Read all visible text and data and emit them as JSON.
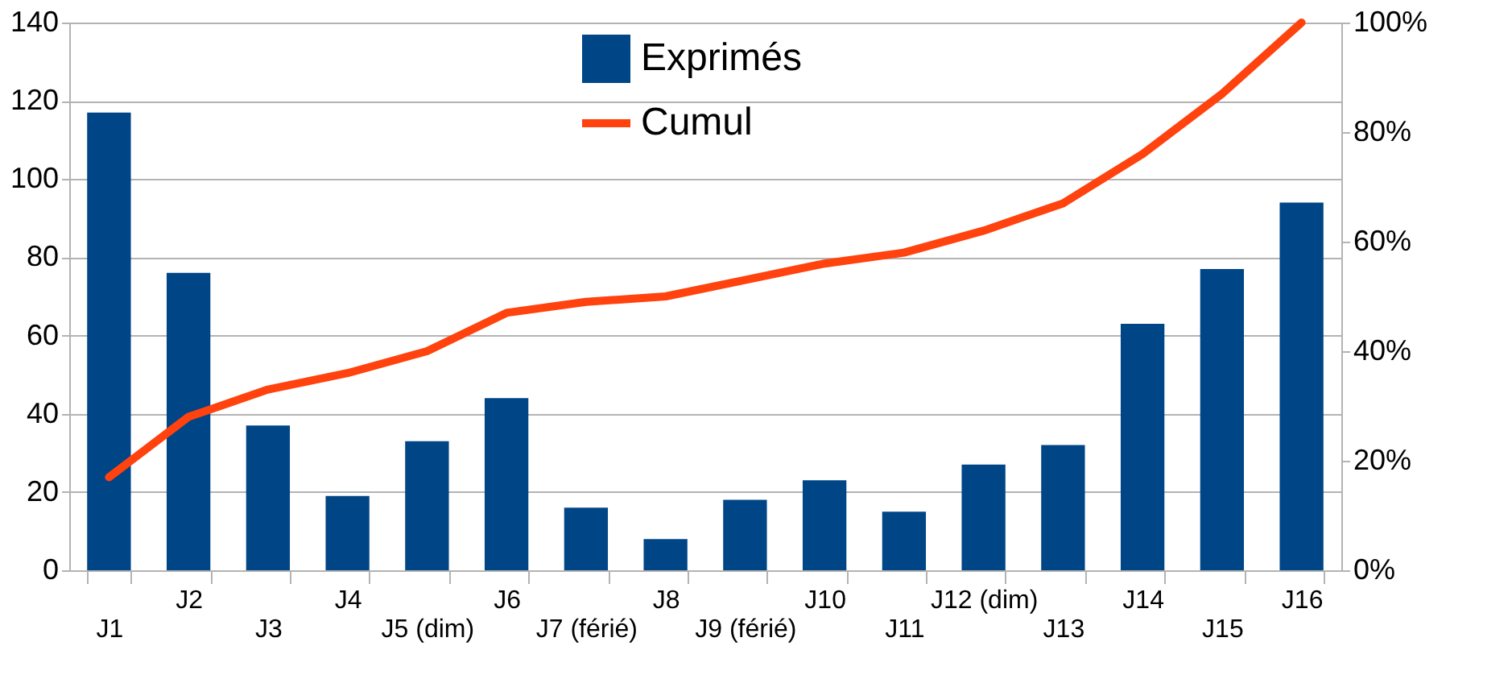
{
  "chart_data": {
    "type": "bar",
    "categories": [
      "J1",
      "J2",
      "J3",
      "J4",
      "J5 (dim)",
      "J6",
      "J7 (férié)",
      "J8",
      "J9 (férié)",
      "J10",
      "J11",
      "J12 (dim)",
      "J13",
      "J14",
      "J15",
      "J16"
    ],
    "series": [
      {
        "name": "Exprimés",
        "color": "#004586",
        "values": [
          117,
          76,
          37,
          19,
          33,
          44,
          16,
          8,
          18,
          23,
          15,
          27,
          32,
          63,
          77,
          94
        ]
      },
      {
        "name": "Cumul",
        "type": "line",
        "axis": "y2",
        "color": "#ff420e",
        "values": [
          17,
          28,
          33,
          36,
          40,
          47,
          49,
          50,
          53,
          56,
          58,
          62,
          67,
          76,
          87,
          100
        ]
      }
    ],
    "ylim": [
      0,
      140
    ],
    "yticks": [
      0,
      20,
      40,
      60,
      80,
      100,
      120,
      140
    ],
    "y2lim": [
      0,
      100
    ],
    "y2ticks": [
      {
        "value": 0,
        "label": "0%"
      },
      {
        "value": 20,
        "label": "20%"
      },
      {
        "value": 40,
        "label": "40%"
      },
      {
        "value": 60,
        "label": "60%"
      },
      {
        "value": 80,
        "label": "80%"
      },
      {
        "value": 100,
        "label": "100%"
      }
    ],
    "grid": "y",
    "legend": "top"
  }
}
